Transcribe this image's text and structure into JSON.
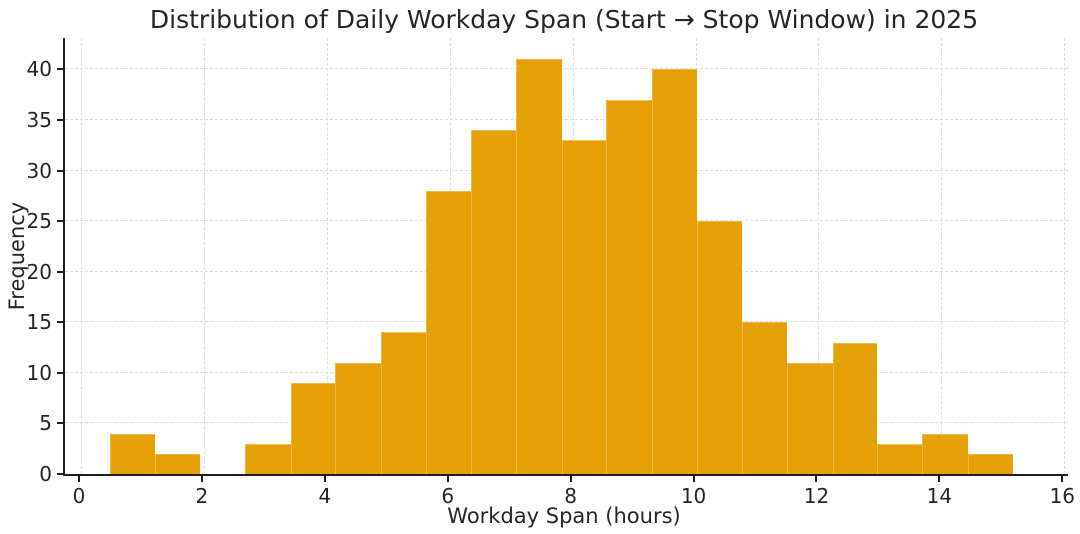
{
  "chart": {
    "title": "Distribution of Daily Workday Span (Start → Stop Window) in 2025",
    "xlabel": "Workday Span (hours)",
    "ylabel": "Frequency"
  },
  "chart_data": {
    "type": "bar",
    "subtype": "histogram",
    "title": "Distribution of Daily Workday Span (Start → Stop Window) in 2025",
    "xlabel": "Workday Span (hours)",
    "ylabel": "Frequency",
    "bin_edges": [
      0.47,
      1.2,
      1.94,
      2.67,
      3.41,
      4.14,
      4.88,
      5.61,
      6.35,
      7.08,
      7.82,
      8.55,
      9.29,
      10.02,
      10.76,
      11.49,
      12.23,
      12.96,
      13.69,
      14.43,
      15.16
    ],
    "counts": [
      4,
      2,
      0,
      3,
      9,
      11,
      14,
      28,
      34,
      41,
      33,
      37,
      40,
      25,
      15,
      11,
      13,
      3,
      4,
      2
    ],
    "x_ticks": [
      0,
      2,
      4,
      6,
      8,
      10,
      12,
      14,
      16
    ],
    "y_ticks": [
      0,
      5,
      10,
      15,
      20,
      25,
      30,
      35,
      40
    ],
    "xlim": [
      -0.26,
      16.06
    ],
    "ylim": [
      0,
      43.1
    ],
    "grid": true,
    "grid_style": "dashed",
    "legend": "none",
    "colors": {
      "bar": "#E4A005",
      "grid": "#dcdcdc",
      "spine": "#1f1f1f",
      "text": "#262626"
    }
  }
}
